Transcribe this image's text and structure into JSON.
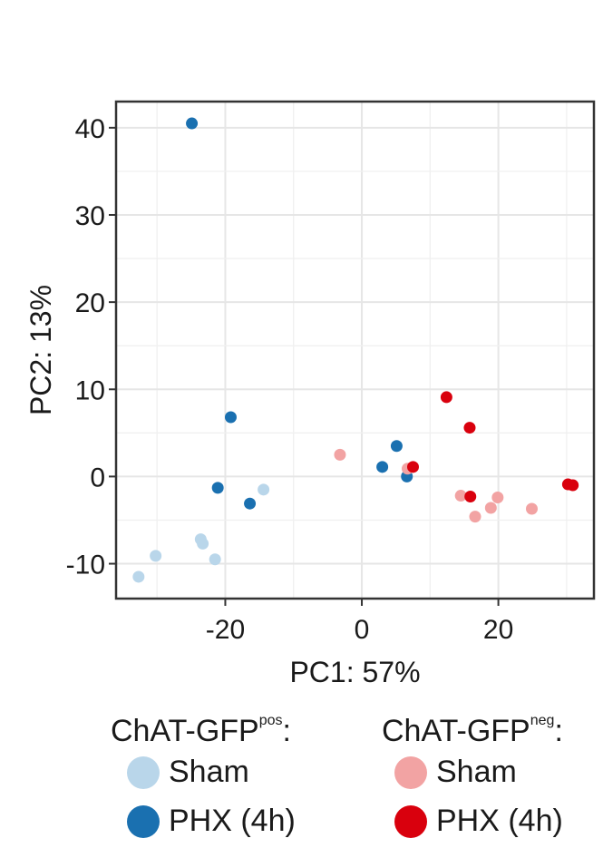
{
  "chart_data": {
    "type": "scatter",
    "xlabel": "PC1: 57%",
    "ylabel": "PC2: 13%",
    "xlim": [
      -36,
      34
    ],
    "ylim": [
      -14,
      43
    ],
    "xticks": [
      -20,
      0,
      20
    ],
    "yticks": [
      -10,
      0,
      10,
      20,
      30,
      40
    ],
    "xtick_labels": [
      "-20",
      "0",
      "20"
    ],
    "ytick_labels": [
      "-10",
      "0",
      "10",
      "20",
      "30",
      "40"
    ],
    "grid": true,
    "legend_position": "bottom",
    "series": [
      {
        "group": "ChAT-GFPpos",
        "name": "Sham",
        "color": "#b9d6ea",
        "x": [
          -14.4,
          -21.5,
          -23.3,
          -23.6,
          -30.2,
          -32.7
        ],
        "y": [
          -1.5,
          -9.5,
          -7.7,
          -7.2,
          -9.1,
          -11.5
        ]
      },
      {
        "group": "ChAT-GFPpos",
        "name": "PHX (4h)",
        "color": "#1a70b0",
        "x": [
          -24.9,
          -19.2,
          -21.1,
          -16.4,
          3.0,
          5.1,
          6.6
        ],
        "y": [
          40.5,
          6.8,
          -1.3,
          -3.1,
          1.1,
          3.5,
          0.0
        ]
      },
      {
        "group": "ChAT-GFPneg",
        "name": "Sham",
        "color": "#f2a3a3",
        "x": [
          -3.2,
          6.7,
          14.5,
          16.6,
          18.9,
          19.9,
          24.9
        ],
        "y": [
          2.5,
          0.9,
          -2.2,
          -4.6,
          -3.6,
          -2.4,
          -3.7
        ]
      },
      {
        "group": "ChAT-GFPneg",
        "name": "PHX (4h)",
        "color": "#d9000d",
        "x": [
          12.4,
          15.8,
          7.5,
          15.9,
          30.2,
          30.9
        ],
        "y": [
          9.1,
          5.6,
          1.1,
          -2.3,
          -0.9,
          -1.0
        ]
      }
    ]
  },
  "legend": {
    "group1_title_main": "ChAT-GFP",
    "group1_title_sup": "pos",
    "group1_title_colon": ":",
    "group2_title_main": "ChAT-GFP",
    "group2_title_sup": "neg",
    "group2_title_colon": ":",
    "group1_item1": "Sham",
    "group1_item2": "PHX (4h)",
    "group2_item1": "Sham",
    "group2_item2": "PHX (4h)"
  }
}
